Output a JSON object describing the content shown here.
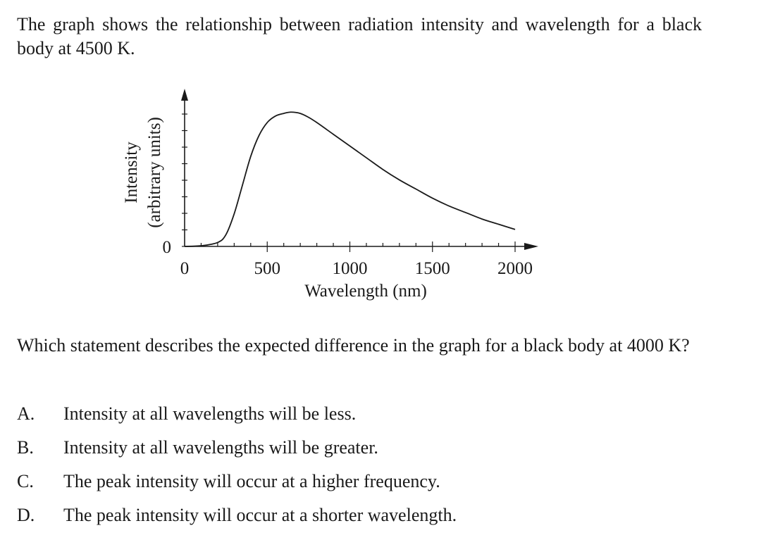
{
  "intro_text": "The graph shows the relationship between radiation intensity and wavelength for a black body at 4500 K.",
  "question_text": "Which statement describes the expected difference in the graph for a black body at 4000 K?",
  "options": [
    {
      "letter": "A.",
      "text": "Intensity at all wavelengths will be less."
    },
    {
      "letter": "B.",
      "text": "Intensity at all wavelengths will be greater."
    },
    {
      "letter": "C.",
      "text": "The peak intensity will occur at a higher frequency."
    },
    {
      "letter": "D.",
      "text": "The peak intensity will occur at a shorter wavelength."
    }
  ],
  "chart_data": {
    "type": "line",
    "title": "",
    "xlabel": "Wavelength (nm)",
    "ylabel_line1": "Intensity",
    "ylabel_line2": "(arbitrary units)",
    "xlim": [
      0,
      2000
    ],
    "ylim": [
      0,
      1.15
    ],
    "x_tick_labels": [
      "0",
      "500",
      "1000",
      "1500",
      "2000"
    ],
    "x_tick_values": [
      0,
      500,
      1000,
      1500,
      2000
    ],
    "y_tick_labels": [
      "0"
    ],
    "grid": false,
    "series": [
      {
        "x": [
          0,
          100,
          200,
          250,
          300,
          350,
          400,
          450,
          500,
          550,
          600,
          644,
          700,
          750,
          800,
          900,
          1000,
          1100,
          1200,
          1300,
          1400,
          1500,
          1600,
          1700,
          1800,
          1900,
          2000
        ],
        "y": [
          0,
          0.005,
          0.03,
          0.09,
          0.25,
          0.47,
          0.69,
          0.85,
          0.95,
          1.0,
          1.02,
          1.03,
          1.02,
          0.99,
          0.95,
          0.86,
          0.77,
          0.68,
          0.59,
          0.51,
          0.44,
          0.37,
          0.31,
          0.26,
          0.21,
          0.17,
          0.13
        ]
      }
    ]
  }
}
